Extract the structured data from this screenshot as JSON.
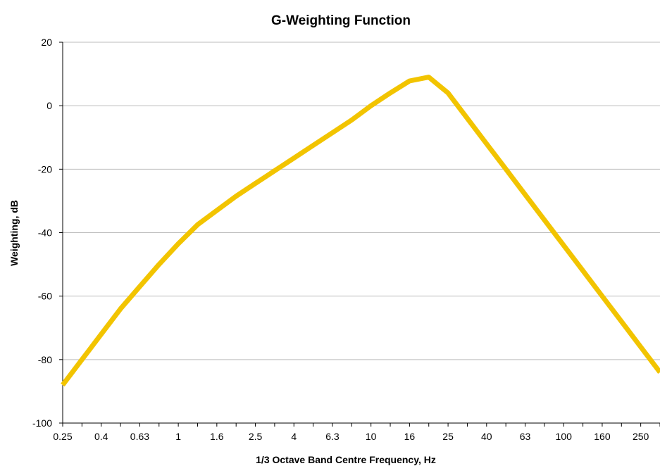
{
  "chart_data": {
    "type": "line",
    "title": "G-Weighting Function",
    "xlabel": "1/3 Octave Band Centre Frequency, Hz",
    "ylabel": "Weighting, dB",
    "ylim": [
      -100,
      20
    ],
    "yticks": [
      "20",
      "0",
      "-20",
      "-40",
      "-60",
      "-80",
      "-100"
    ],
    "grid": true,
    "color": "#F2C400",
    "x": [
      "0.25",
      "0.315",
      "0.4",
      "0.5",
      "0.63",
      "0.8",
      "1",
      "1.25",
      "1.6",
      "2",
      "2.5",
      "3.15",
      "4",
      "5",
      "6.3",
      "8",
      "10",
      "12.5",
      "16",
      "20",
      "25",
      "31.5",
      "40",
      "50",
      "63",
      "80",
      "100",
      "125",
      "160",
      "200",
      "250",
      "315"
    ],
    "x_tick_labels": [
      "0.25",
      "0.4",
      "0.63",
      "1",
      "1.6",
      "2.5",
      "4",
      "6.3",
      "10",
      "16",
      "25",
      "40",
      "63",
      "100",
      "160",
      "250"
    ],
    "series": [
      {
        "values": [
          -88,
          -80,
          -72,
          -64,
          -57,
          -50,
          -43.5,
          -37.5,
          -33,
          -28.5,
          -24.5,
          -20.5,
          -16.5,
          -12.5,
          -8.5,
          -4.5,
          0,
          4,
          7.8,
          9,
          4,
          -4,
          -12,
          -20,
          -28,
          -36,
          -44,
          -52,
          -60,
          -68,
          -76,
          -84
        ]
      }
    ]
  }
}
